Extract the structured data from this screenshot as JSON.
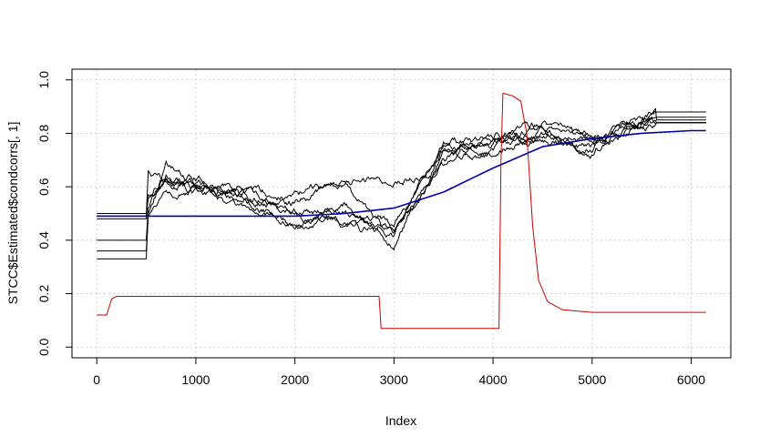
{
  "chart_data": {
    "type": "line",
    "title": "",
    "xlabel": "Index",
    "ylabel": "STCC$Estimated$condcorrs[, 1]",
    "xlim": [
      -250,
      6400
    ],
    "ylim": [
      -0.04,
      1.04
    ],
    "xticks": [
      0,
      1000,
      2000,
      3000,
      4000,
      5000,
      6000
    ],
    "yticks": [
      0.0,
      0.2,
      0.4,
      0.6,
      0.8,
      1.0
    ],
    "xtick_labels": [
      "0",
      "1000",
      "2000",
      "3000",
      "4000",
      "5000",
      "6000"
    ],
    "ytick_labels": [
      "0.0",
      "0.2",
      "0.4",
      "0.6",
      "0.8",
      "1.0"
    ],
    "grid": true,
    "legend": "none",
    "series": [
      {
        "color": "#000000",
        "start_x": 0,
        "start_value": 0.5,
        "end_x": 6150,
        "end_value": 0.88,
        "points": [
          [
            0,
            0.5
          ],
          [
            500,
            0.5
          ],
          [
            520,
            0.56
          ],
          [
            700,
            0.63
          ],
          [
            1000,
            0.6
          ],
          [
            1500,
            0.56
          ],
          [
            2000,
            0.5
          ],
          [
            2500,
            0.46
          ],
          [
            3000,
            0.43
          ],
          [
            3500,
            0.7
          ],
          [
            4000,
            0.77
          ],
          [
            4500,
            0.78
          ],
          [
            5000,
            0.76
          ],
          [
            5500,
            0.84
          ],
          [
            5650,
            0.88
          ],
          [
            6150,
            0.88
          ]
        ]
      },
      {
        "color": "#000000",
        "start_x": 0,
        "start_value": 0.49,
        "end_x": 6150,
        "end_value": 0.86,
        "points": [
          [
            0,
            0.49
          ],
          [
            500,
            0.49
          ],
          [
            520,
            0.66
          ],
          [
            700,
            0.62
          ],
          [
            1000,
            0.61
          ],
          [
            1500,
            0.58
          ],
          [
            2000,
            0.5
          ],
          [
            2500,
            0.54
          ],
          [
            3000,
            0.42
          ],
          [
            3500,
            0.71
          ],
          [
            4000,
            0.76
          ],
          [
            4500,
            0.8
          ],
          [
            5000,
            0.78
          ],
          [
            5500,
            0.83
          ],
          [
            5650,
            0.86
          ],
          [
            6150,
            0.86
          ]
        ]
      },
      {
        "color": "#000000",
        "start_x": 0,
        "start_value": 0.48,
        "end_x": 6150,
        "end_value": 0.85,
        "points": [
          [
            0,
            0.48
          ],
          [
            500,
            0.48
          ],
          [
            520,
            0.57
          ],
          [
            700,
            0.61
          ],
          [
            1000,
            0.63
          ],
          [
            1500,
            0.59
          ],
          [
            2000,
            0.57
          ],
          [
            2500,
            0.62
          ],
          [
            3000,
            0.62
          ],
          [
            3500,
            0.68
          ],
          [
            4000,
            0.73
          ],
          [
            4500,
            0.79
          ],
          [
            5000,
            0.74
          ],
          [
            5500,
            0.82
          ],
          [
            5650,
            0.85
          ],
          [
            6150,
            0.85
          ]
        ]
      },
      {
        "color": "#000000",
        "start_x": 0,
        "start_value": 0.4,
        "end_x": 6150,
        "end_value": 0.84,
        "points": [
          [
            0,
            0.4
          ],
          [
            500,
            0.4
          ],
          [
            520,
            0.52
          ],
          [
            700,
            0.64
          ],
          [
            1000,
            0.59
          ],
          [
            1500,
            0.55
          ],
          [
            2000,
            0.46
          ],
          [
            2500,
            0.48
          ],
          [
            3000,
            0.39
          ],
          [
            3500,
            0.74
          ],
          [
            4000,
            0.72
          ],
          [
            4500,
            0.8
          ],
          [
            5000,
            0.73
          ],
          [
            5500,
            0.84
          ],
          [
            5650,
            0.84
          ],
          [
            6150,
            0.84
          ]
        ]
      },
      {
        "color": "#000000",
        "start_x": 0,
        "start_value": 0.36,
        "end_x": 6150,
        "end_value": 0.84,
        "points": [
          [
            0,
            0.36
          ],
          [
            500,
            0.36
          ],
          [
            520,
            0.49
          ],
          [
            700,
            0.6
          ],
          [
            1000,
            0.59
          ],
          [
            1500,
            0.54
          ],
          [
            2000,
            0.45
          ],
          [
            2500,
            0.5
          ],
          [
            3000,
            0.44
          ],
          [
            3500,
            0.75
          ],
          [
            4000,
            0.79
          ],
          [
            4500,
            0.82
          ],
          [
            5000,
            0.77
          ],
          [
            5500,
            0.83
          ],
          [
            5650,
            0.84
          ],
          [
            6150,
            0.84
          ]
        ]
      },
      {
        "color": "#000000",
        "start_x": 0,
        "start_value": 0.33,
        "end_x": 6150,
        "end_value": 0.84,
        "points": [
          [
            0,
            0.33
          ],
          [
            500,
            0.33
          ],
          [
            520,
            0.5
          ],
          [
            700,
            0.67
          ],
          [
            1000,
            0.6
          ],
          [
            1500,
            0.57
          ],
          [
            2000,
            0.55
          ],
          [
            2500,
            0.6
          ],
          [
            3000,
            0.41
          ],
          [
            3500,
            0.77
          ],
          [
            4000,
            0.77
          ],
          [
            4500,
            0.84
          ],
          [
            5000,
            0.76
          ],
          [
            5500,
            0.83
          ],
          [
            5650,
            0.84
          ],
          [
            6150,
            0.84
          ]
        ]
      },
      {
        "color": "#0000aa",
        "points": [
          [
            0,
            0.49
          ],
          [
            500,
            0.49
          ],
          [
            1000,
            0.49
          ],
          [
            1500,
            0.49
          ],
          [
            2000,
            0.49
          ],
          [
            2500,
            0.5
          ],
          [
            3000,
            0.52
          ],
          [
            3500,
            0.58
          ],
          [
            4000,
            0.67
          ],
          [
            4500,
            0.75
          ],
          [
            5000,
            0.78
          ],
          [
            5500,
            0.8
          ],
          [
            6000,
            0.81
          ],
          [
            6150,
            0.81
          ]
        ]
      },
      {
        "color": "#cc0000",
        "points": [
          [
            0,
            0.12
          ],
          [
            100,
            0.12
          ],
          [
            150,
            0.18
          ],
          [
            200,
            0.19
          ],
          [
            2850,
            0.19
          ],
          [
            2870,
            0.07
          ],
          [
            4060,
            0.07
          ],
          [
            4080,
            0.7
          ],
          [
            4100,
            0.95
          ],
          [
            4200,
            0.94
          ],
          [
            4280,
            0.92
          ],
          [
            4340,
            0.8
          ],
          [
            4400,
            0.45
          ],
          [
            4460,
            0.25
          ],
          [
            4550,
            0.17
          ],
          [
            4700,
            0.14
          ],
          [
            5000,
            0.13
          ],
          [
            6150,
            0.13
          ]
        ]
      }
    ]
  }
}
